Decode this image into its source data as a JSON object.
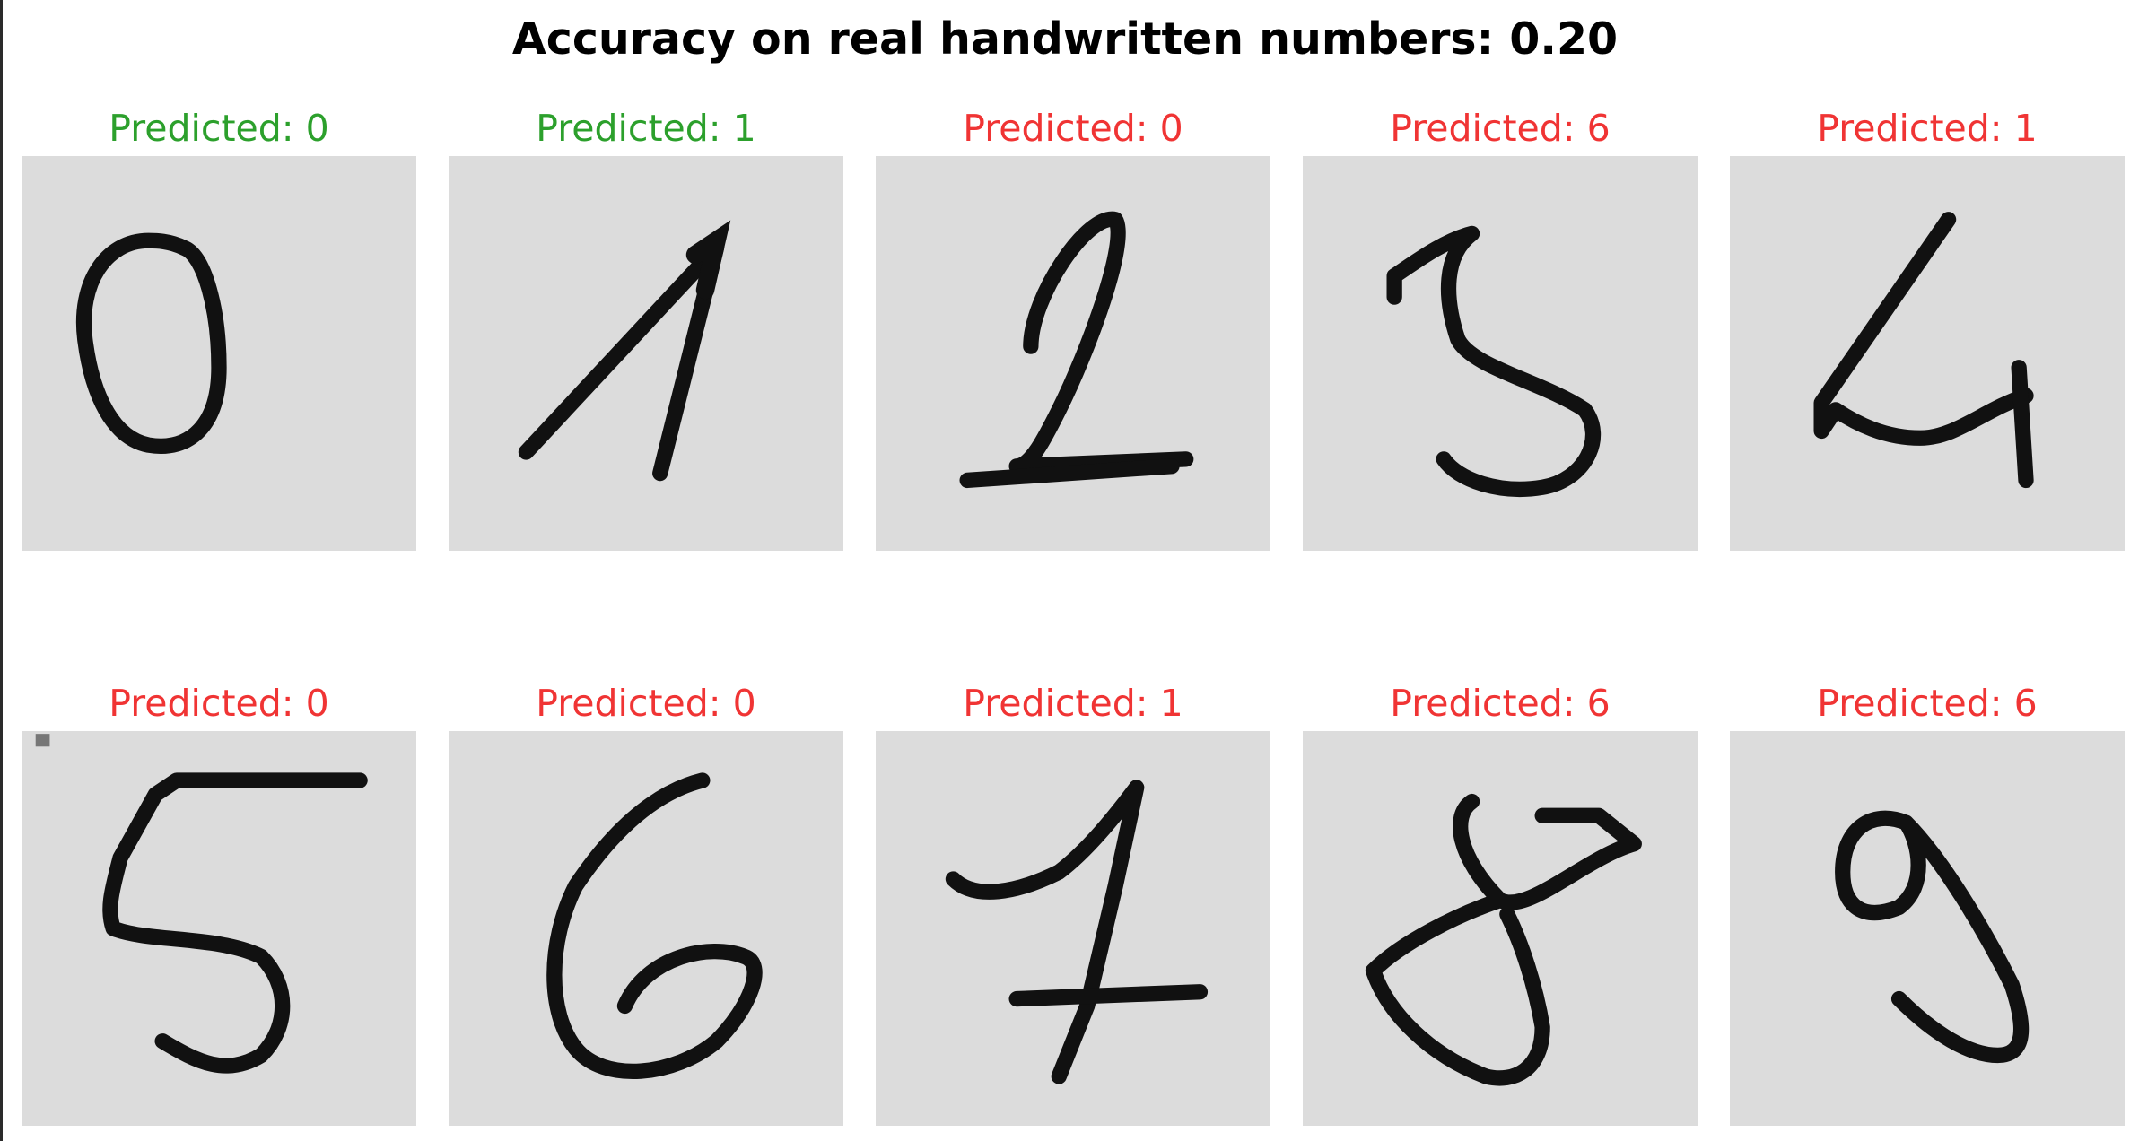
{
  "title": "Accuracy on real handwritten numbers: 0.20",
  "colors": {
    "correct": "#2ca02c",
    "incorrect": "#f03434",
    "panel_bg": "#dcdcdc",
    "ink": "#111111"
  },
  "samples": [
    {
      "label": "Predicted: 0",
      "status": "correct",
      "digit_icon": "handwritten-digit-0-icon"
    },
    {
      "label": "Predicted: 1",
      "status": "correct",
      "digit_icon": "handwritten-digit-1-icon"
    },
    {
      "label": "Predicted: 0",
      "status": "incorrect",
      "digit_icon": "handwritten-digit-2-icon"
    },
    {
      "label": "Predicted: 6",
      "status": "incorrect",
      "digit_icon": "handwritten-digit-3-icon"
    },
    {
      "label": "Predicted: 1",
      "status": "incorrect",
      "digit_icon": "handwritten-digit-4-icon"
    },
    {
      "label": "Predicted: 0",
      "status": "incorrect",
      "digit_icon": "handwritten-digit-5-icon"
    },
    {
      "label": "Predicted: 0",
      "status": "incorrect",
      "digit_icon": "handwritten-digit-6-icon"
    },
    {
      "label": "Predicted: 1",
      "status": "incorrect",
      "digit_icon": "handwritten-digit-7-icon"
    },
    {
      "label": "Predicted: 6",
      "status": "incorrect",
      "digit_icon": "handwritten-digit-8-icon"
    },
    {
      "label": "Predicted: 6",
      "status": "incorrect",
      "digit_icon": "handwritten-digit-9-icon"
    }
  ]
}
